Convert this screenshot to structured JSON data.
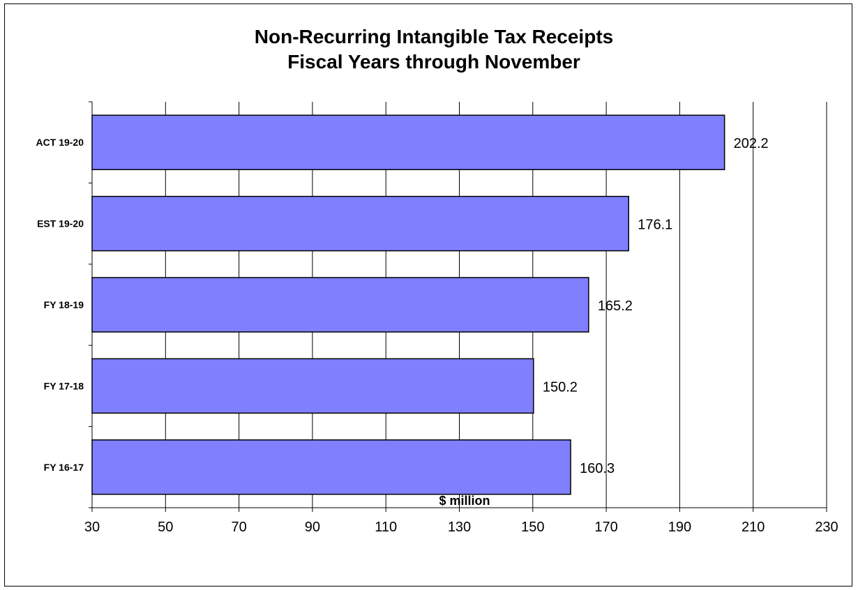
{
  "chart_data": {
    "type": "bar",
    "orientation": "horizontal",
    "title": [
      "Non-Recurring Intangible Tax Receipts",
      "Fiscal Years through November"
    ],
    "categories": [
      "ACT 19-20",
      "EST 19-20",
      "FY 18-19",
      "FY 17-18",
      "FY 16-17"
    ],
    "values": [
      202.2,
      176.1,
      165.2,
      150.2,
      160.3
    ],
    "data_labels": [
      "202.2",
      "176.1",
      "165.2",
      "150.2",
      "160.3"
    ],
    "xlabel": "$ million",
    "ylabel": "",
    "xlim": [
      30,
      230
    ],
    "xticks": [
      30,
      50,
      70,
      90,
      110,
      130,
      150,
      170,
      190,
      210,
      230
    ],
    "grid": "vertical",
    "legend": "none",
    "colors": {
      "bar_fill": "#8080ff",
      "bar_stroke": "#000000",
      "grid": "#000000"
    }
  }
}
